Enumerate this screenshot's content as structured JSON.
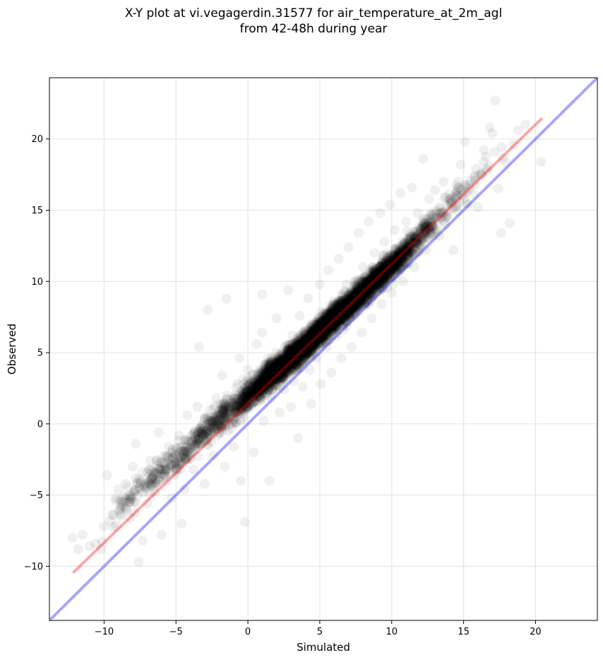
{
  "title_line1": "X-Y plot at vi.vegagerdin.31577 for air_temperature_at_2m_agl",
  "title_line2": "from 42-48h during year",
  "chart_data": {
    "type": "scatter",
    "title": "X-Y plot at vi.vegagerdin.31577 for air_temperature_at_2m_agl from 42-48h during year",
    "xlabel": "Simulated",
    "ylabel": "Observed",
    "xlim": [
      -13.8,
      24.3
    ],
    "ylim": [
      -13.8,
      24.3
    ],
    "x_ticks": [
      -10,
      -5,
      0,
      5,
      10,
      15,
      20
    ],
    "y_ticks": [
      -10,
      -5,
      0,
      5,
      10,
      15,
      20
    ],
    "x_tick_labels": [
      "−10",
      "−5",
      "0",
      "5",
      "10",
      "15",
      "20"
    ],
    "y_tick_labels": [
      "−10",
      "−5",
      "0",
      "5",
      "10",
      "15",
      "20"
    ],
    "grid": true,
    "point_color": "#000000",
    "point_alpha": 0.06,
    "series": [
      {
        "values": [
          [
            -12.2,
            -8.0
          ],
          [
            -11.8,
            -8.8
          ],
          [
            -11.5,
            -7.8
          ],
          [
            -11.0,
            -8.6
          ],
          [
            -10.6,
            -8.4
          ],
          [
            -10.2,
            -8.8
          ],
          [
            -10.0,
            -7.2
          ],
          [
            -9.6,
            -6.8
          ],
          [
            -9.8,
            -3.6
          ],
          [
            -9.2,
            -5.2
          ],
          [
            -9.0,
            -4.6
          ],
          [
            -8.7,
            -5.8
          ],
          [
            -8.5,
            -4.2
          ],
          [
            -8.2,
            -6.6
          ],
          [
            -8.0,
            -3.0
          ],
          [
            -7.8,
            -1.4
          ],
          [
            -7.5,
            -4.0
          ],
          [
            -7.3,
            -8.2
          ],
          [
            -7.6,
            -9.7
          ],
          [
            -7.0,
            -5.6
          ],
          [
            -6.8,
            -2.6
          ],
          [
            -6.5,
            -4.8
          ],
          [
            -6.2,
            -0.6
          ],
          [
            -6.0,
            -7.8
          ],
          [
            -5.8,
            -3.6
          ],
          [
            -5.5,
            -1.6
          ],
          [
            -5.3,
            -5.2
          ],
          [
            -5.0,
            -2.8
          ],
          [
            -4.8,
            -0.8
          ],
          [
            -4.6,
            -7.0
          ],
          [
            -4.4,
            -4.6
          ],
          [
            -4.2,
            0.6
          ],
          [
            -4.0,
            -2.0
          ],
          [
            -3.8,
            -3.2
          ],
          [
            -3.5,
            1.2
          ],
          [
            -3.3,
            -1.0
          ],
          [
            -3.0,
            -4.2
          ],
          [
            -2.8,
            8.0
          ],
          [
            -3.4,
            5.4
          ],
          [
            -2.6,
            0.2
          ],
          [
            -2.4,
            -2.2
          ],
          [
            -2.2,
            1.8
          ],
          [
            -2.0,
            -0.6
          ],
          [
            -1.8,
            3.4
          ],
          [
            -1.6,
            -3.0
          ],
          [
            -1.5,
            8.8
          ],
          [
            -1.2,
            1.0
          ],
          [
            -1.0,
            -1.6
          ],
          [
            -0.8,
            2.6
          ],
          [
            -0.6,
            4.6
          ],
          [
            -0.5,
            -4.0
          ],
          [
            -0.3,
            0.4
          ],
          [
            -0.2,
            -6.9
          ],
          [
            0.0,
            3.8
          ],
          [
            0.2,
            1.4
          ],
          [
            0.4,
            -2.0
          ],
          [
            0.6,
            5.6
          ],
          [
            0.8,
            2.2
          ],
          [
            1.0,
            6.4
          ],
          [
            1.1,
            0.2
          ],
          [
            1.2,
            3.4
          ],
          [
            1.4,
            4.6
          ],
          [
            1.5,
            -4.0
          ],
          [
            1.6,
            1.8
          ],
          [
            1.0,
            9.1
          ],
          [
            1.8,
            2.8
          ],
          [
            2.0,
            7.4
          ],
          [
            2.2,
            0.8
          ],
          [
            2.3,
            5.0
          ],
          [
            2.5,
            2.4
          ],
          [
            2.6,
            3.8
          ],
          [
            2.8,
            9.4
          ],
          [
            3.0,
            1.2
          ],
          [
            3.1,
            6.2
          ],
          [
            3.2,
            3.0
          ],
          [
            3.4,
            4.6
          ],
          [
            3.5,
            -1.0
          ],
          [
            3.6,
            7.6
          ],
          [
            3.8,
            2.6
          ],
          [
            4.0,
            5.4
          ],
          [
            4.2,
            8.8
          ],
          [
            4.3,
            3.8
          ],
          [
            4.4,
            1.4
          ],
          [
            4.6,
            6.6
          ],
          [
            4.8,
            4.6
          ],
          [
            5.0,
            9.8
          ],
          [
            5.1,
            2.8
          ],
          [
            5.3,
            7.2
          ],
          [
            5.5,
            5.4
          ],
          [
            5.6,
            10.8
          ],
          [
            5.8,
            3.6
          ],
          [
            6.0,
            8.4
          ],
          [
            6.2,
            6.2
          ],
          [
            6.3,
            11.6
          ],
          [
            6.5,
            4.6
          ],
          [
            6.6,
            9.0
          ],
          [
            6.8,
            7.2
          ],
          [
            7.0,
            12.4
          ],
          [
            7.2,
            5.4
          ],
          [
            7.4,
            10.0
          ],
          [
            7.6,
            8.2
          ],
          [
            7.7,
            13.4
          ],
          [
            7.9,
            6.4
          ],
          [
            8.0,
            11.0
          ],
          [
            8.2,
            9.2
          ],
          [
            8.4,
            14.2
          ],
          [
            8.6,
            7.4
          ],
          [
            8.8,
            12.0
          ],
          [
            9.0,
            10.0
          ],
          [
            9.2,
            14.8
          ],
          [
            9.3,
            8.4
          ],
          [
            9.5,
            12.8
          ],
          [
            9.7,
            10.8
          ],
          [
            9.9,
            15.4
          ],
          [
            10.0,
            9.2
          ],
          [
            10.2,
            13.6
          ],
          [
            10.4,
            11.8
          ],
          [
            10.6,
            16.2
          ],
          [
            10.8,
            10.0
          ],
          [
            11.0,
            14.2
          ],
          [
            11.2,
            12.4
          ],
          [
            11.4,
            16.6
          ],
          [
            11.6,
            11.0
          ],
          [
            11.8,
            14.8
          ],
          [
            12.0,
            13.4
          ],
          [
            12.2,
            18.6
          ],
          [
            12.4,
            12.2
          ],
          [
            12.6,
            15.8
          ],
          [
            12.8,
            14.2
          ],
          [
            13.0,
            16.4
          ],
          [
            13.3,
            13.2
          ],
          [
            13.6,
            17.0
          ],
          [
            13.8,
            14.6
          ],
          [
            14.0,
            15.8
          ],
          [
            14.3,
            12.2
          ],
          [
            14.6,
            16.6
          ],
          [
            14.8,
            18.2
          ],
          [
            15.1,
            19.8
          ],
          [
            15.4,
            16.8
          ],
          [
            16.0,
            15.2
          ],
          [
            16.4,
            19.2
          ],
          [
            16.8,
            20.8
          ],
          [
            17.2,
            22.7
          ],
          [
            17.4,
            16.5
          ],
          [
            17.6,
            13.4
          ],
          [
            17.9,
            18.4
          ],
          [
            18.2,
            14.1
          ],
          [
            18.5,
            19.6
          ],
          [
            18.8,
            20.6
          ],
          [
            19.3,
            21.0
          ],
          [
            20.4,
            18.4
          ],
          [
            17.0,
            20.4
          ]
        ]
      },
      {
        "cloud": [
          [
            -8.0,
            -5.0,
            1.4,
            1.6,
            60
          ],
          [
            -6.0,
            -3.2,
            1.4,
            1.6,
            90
          ],
          [
            -4.0,
            -1.6,
            1.4,
            1.5,
            120
          ],
          [
            -2.0,
            0.4,
            1.3,
            1.5,
            200
          ],
          [
            0.0,
            2.0,
            1.3,
            1.5,
            320
          ],
          [
            1.5,
            3.4,
            1.2,
            1.4,
            520
          ],
          [
            3.0,
            4.6,
            1.2,
            1.4,
            700
          ],
          [
            4.5,
            6.0,
            1.2,
            1.4,
            760
          ],
          [
            6.0,
            7.4,
            1.2,
            1.4,
            720
          ],
          [
            7.5,
            8.8,
            1.2,
            1.4,
            640
          ],
          [
            9.0,
            10.2,
            1.2,
            1.4,
            560
          ],
          [
            10.5,
            11.6,
            1.2,
            1.4,
            360
          ],
          [
            12.0,
            13.2,
            1.3,
            1.5,
            160
          ],
          [
            14.0,
            15.4,
            1.4,
            1.6,
            60
          ],
          [
            16.0,
            17.4,
            1.4,
            1.6,
            25
          ]
        ]
      }
    ],
    "lines": [
      {
        "name": "",
        "color": "#ff0000",
        "alpha": 0.35,
        "x": [
          -12.1,
          20.4
        ],
        "y": [
          -10.4,
          21.4
        ]
      },
      {
        "name": "",
        "color": "#0000ff",
        "alpha": 0.35,
        "x": [
          -13.8,
          24.3
        ],
        "y": [
          -13.8,
          24.3
        ]
      }
    ]
  }
}
